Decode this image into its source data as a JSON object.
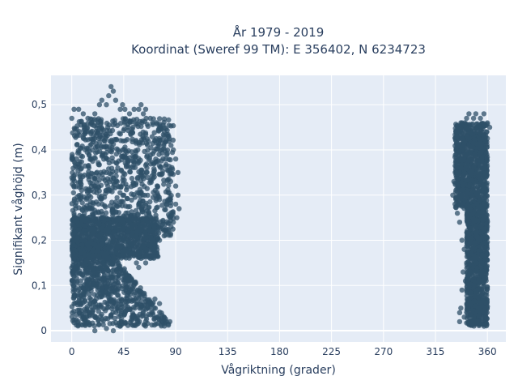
{
  "chart_data": {
    "type": "scatter",
    "title_line1": "År 1979 - 2019",
    "title_line2": "Koordinat (Sweref 99 TM): E 356402, N 6234723",
    "xlabel": "Vågriktning (grader)",
    "ylabel": "Signifikant våghöjd (m)",
    "xlim": [
      -18,
      376
    ],
    "ylim": [
      -0.025,
      0.565
    ],
    "x_ticks": [
      0,
      45,
      90,
      135,
      180,
      225,
      270,
      315,
      360
    ],
    "x_tick_labels": [
      "0",
      "45",
      "90",
      "135",
      "180",
      "225",
      "270",
      "315",
      "360"
    ],
    "y_ticks": [
      0,
      0.1,
      0.2,
      0.3,
      0.4,
      0.5
    ],
    "y_tick_labels": [
      "0",
      "0,1",
      "0,2",
      "0,3",
      "0,4",
      "0,5"
    ],
    "grid": true,
    "colors": {
      "marker": "#2f5068",
      "plot_bg": "#e5ecf6",
      "grid": "#ffffff",
      "text": "#2a3f5f"
    },
    "series": [
      {
        "clusters": [
          {
            "x": [
              0,
              88
            ],
            "y": [
              0.01,
              0.2
            ],
            "shape": "tri"
          },
          {
            "x": [
              0,
              88
            ],
            "y": [
              0.21,
              0.47
            ],
            "shape": "rect"
          },
          {
            "x": [
              0,
              75
            ],
            "y": [
              0.16,
              0.25
            ],
            "shape": "rect"
          },
          {
            "x": [
              332,
              360
            ],
            "y": [
              0.27,
              0.46
            ],
            "shape": "rect"
          },
          {
            "x": [
              342,
              360
            ],
            "y": [
              0.01,
              0.28
            ],
            "shape": "rect"
          }
        ],
        "points": [
          [
            0,
            0.47
          ],
          [
            2,
            0.49
          ],
          [
            6,
            0.49
          ],
          [
            10,
            0.48
          ],
          [
            14,
            0.47
          ],
          [
            20,
            0.48
          ],
          [
            24,
            0.5
          ],
          [
            26,
            0.51
          ],
          [
            30,
            0.5
          ],
          [
            32,
            0.52
          ],
          [
            34,
            0.54
          ],
          [
            36,
            0.53
          ],
          [
            38,
            0.51
          ],
          [
            42,
            0.49
          ],
          [
            44,
            0.5
          ],
          [
            46,
            0.49
          ],
          [
            50,
            0.48
          ],
          [
            54,
            0.49
          ],
          [
            58,
            0.49
          ],
          [
            60,
            0.5
          ],
          [
            62,
            0.48
          ],
          [
            64,
            0.49
          ],
          [
            68,
            0.47
          ],
          [
            70,
            0.46
          ],
          [
            76,
            0.45
          ],
          [
            80,
            0.44
          ],
          [
            84,
            0.43
          ],
          [
            86,
            0.41
          ],
          [
            88,
            0.4
          ],
          [
            90,
            0.38
          ],
          [
            92,
            0.35
          ],
          [
            90,
            0.32
          ],
          [
            92,
            0.3
          ],
          [
            90,
            0.28
          ],
          [
            93,
            0.27
          ],
          [
            91,
            0.25
          ],
          [
            88,
            0.24
          ],
          [
            86,
            0.23
          ],
          [
            84,
            0.22
          ],
          [
            80,
            0.21
          ],
          [
            76,
            0.2
          ],
          [
            72,
            0.19
          ],
          [
            70,
            0.17
          ],
          [
            68,
            0.16
          ],
          [
            64,
            0.15
          ],
          [
            60,
            0.16
          ],
          [
            58,
            0.14
          ],
          [
            56,
            0.15
          ],
          [
            52,
            0.17
          ],
          [
            50,
            0.18
          ],
          [
            66,
            0.05
          ],
          [
            70,
            0.04
          ],
          [
            74,
            0.03
          ],
          [
            78,
            0.02
          ],
          [
            80,
            0.03
          ],
          [
            82,
            0.02
          ],
          [
            20,
            0.0
          ],
          [
            36,
            0.0
          ],
          [
            42,
            0.01
          ],
          [
            30,
            0.005
          ],
          [
            85,
            0.02
          ],
          [
            76,
            0.06
          ],
          [
            72,
            0.07
          ],
          [
            336,
            0.44
          ],
          [
            338,
            0.46
          ],
          [
            342,
            0.47
          ],
          [
            344,
            0.48
          ],
          [
            348,
            0.47
          ],
          [
            350,
            0.48
          ],
          [
            354,
            0.47
          ],
          [
            357,
            0.48
          ],
          [
            360,
            0.46
          ],
          [
            362,
            0.45
          ],
          [
            333,
            0.35
          ],
          [
            331,
            0.33
          ],
          [
            330,
            0.3
          ],
          [
            332,
            0.28
          ],
          [
            334,
            0.26
          ],
          [
            336,
            0.24
          ],
          [
            338,
            0.2
          ],
          [
            340,
            0.18
          ],
          [
            342,
            0.15
          ],
          [
            339,
            0.13
          ],
          [
            341,
            0.11
          ],
          [
            338,
            0.09
          ],
          [
            337,
            0.05
          ],
          [
            336,
            0.04
          ],
          [
            336,
            0.02
          ],
          [
            340,
            0.03
          ],
          [
            344,
            0.1
          ],
          [
            346,
            0.06
          ]
        ]
      }
    ]
  }
}
